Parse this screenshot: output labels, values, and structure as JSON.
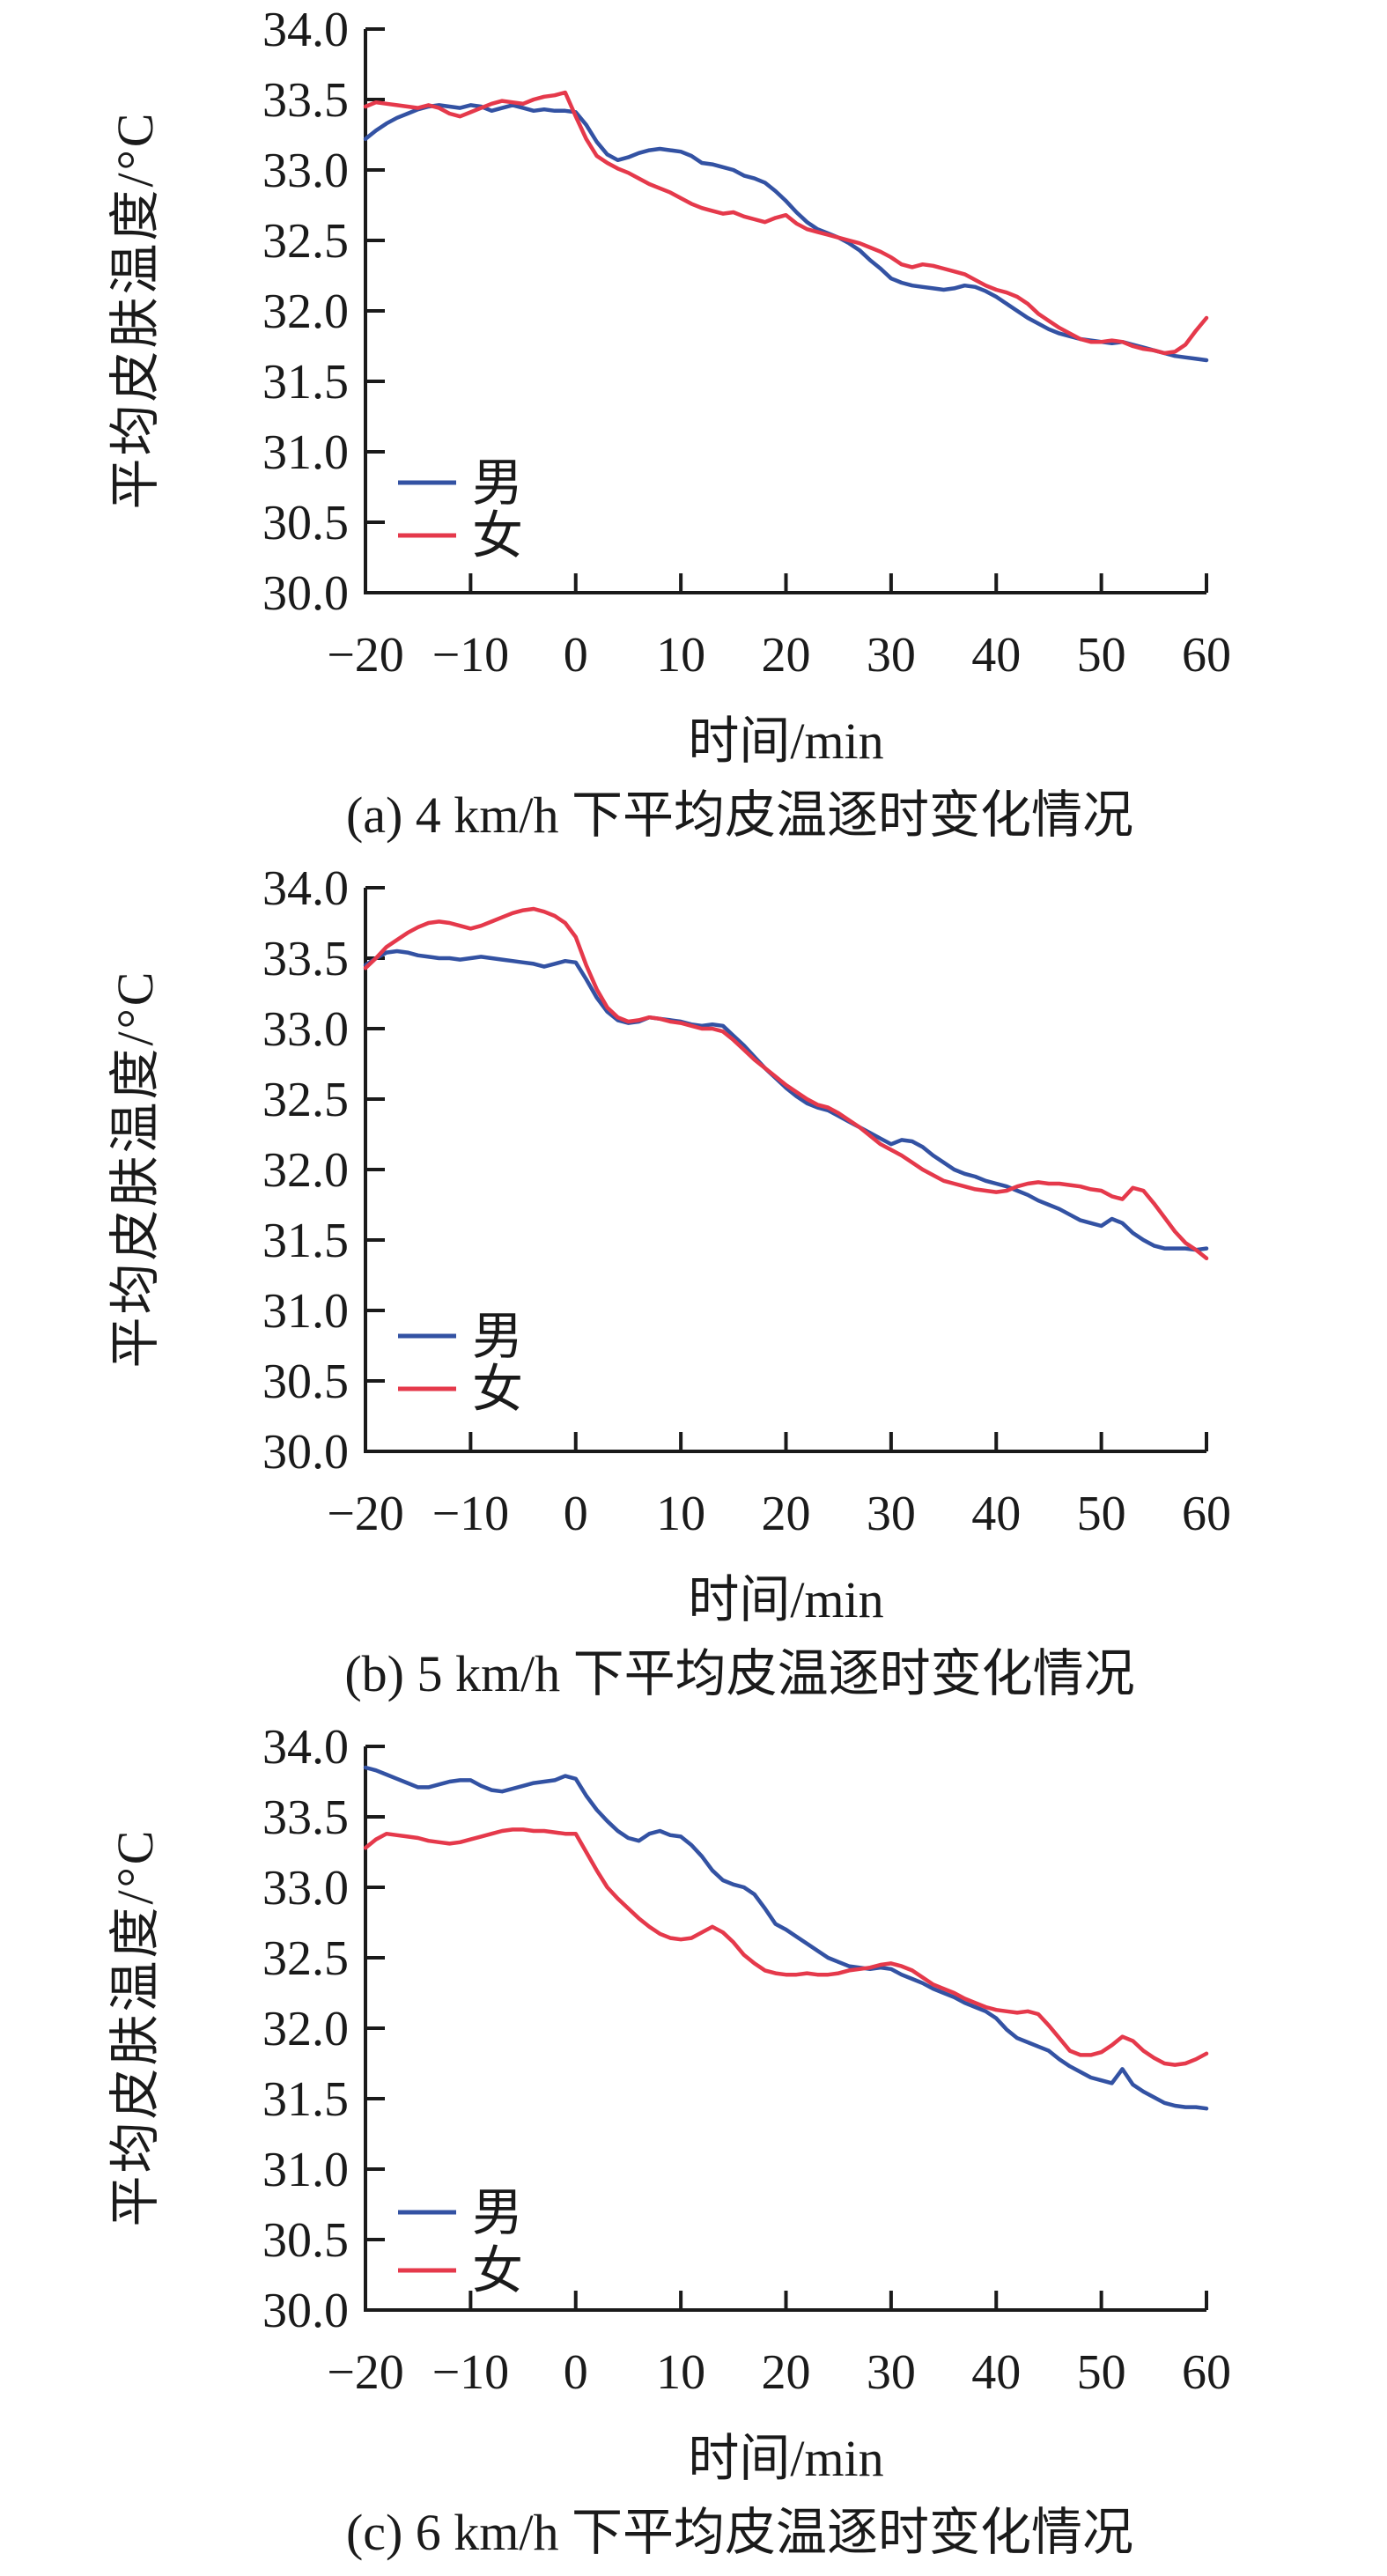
{
  "page": {
    "background": "#ffffff"
  },
  "colors": {
    "male": "#3352a3",
    "female": "#e5394b",
    "axis": "#1a1a1a",
    "text": "#1a1a1a"
  },
  "chart_data": [
    {
      "type": "line",
      "id": "a",
      "caption": "(a) 4 km/h 下平均皮温逐时变化情况",
      "xlabel": "时间/min",
      "ylabel": "平均皮肤温度/°C",
      "xlim": [
        -20,
        60
      ],
      "ylim": [
        30.0,
        34.0
      ],
      "x_ticks": [
        -20,
        -10,
        0,
        10,
        20,
        30,
        40,
        50,
        60
      ],
      "y_ticks": [
        34.0,
        33.5,
        33.0,
        32.5,
        32.0,
        31.5,
        31.0,
        30.5,
        30.0
      ],
      "grid": false,
      "legend": {
        "position": "lower-left-inside",
        "rows_y": [
          548,
          608
        ]
      },
      "series": [
        {
          "key": "male",
          "name": "男",
          "color_key": "male",
          "x_start": -20,
          "x_step": 1,
          "y": [
            33.22,
            33.28,
            33.33,
            33.37,
            33.4,
            33.43,
            33.45,
            33.46,
            33.45,
            33.44,
            33.46,
            33.45,
            33.42,
            33.44,
            33.46,
            33.44,
            33.42,
            33.43,
            33.42,
            33.42,
            33.41,
            33.32,
            33.2,
            33.11,
            33.07,
            33.09,
            33.12,
            33.14,
            33.15,
            33.14,
            33.13,
            33.1,
            33.05,
            33.04,
            33.02,
            33.0,
            32.96,
            32.94,
            32.91,
            32.85,
            32.78,
            32.7,
            32.63,
            32.58,
            32.55,
            32.52,
            32.48,
            32.43,
            32.36,
            32.3,
            32.23,
            32.2,
            32.18,
            32.17,
            32.16,
            32.15,
            32.16,
            32.18,
            32.17,
            32.14,
            32.1,
            32.05,
            32.0,
            31.95,
            31.91,
            31.87,
            31.84,
            31.82,
            31.8,
            31.79,
            31.78,
            31.77,
            31.78,
            31.76,
            31.74,
            31.72,
            31.7,
            31.68,
            31.67,
            31.66,
            31.65
          ]
        },
        {
          "key": "female",
          "name": "女",
          "color_key": "female",
          "x_start": -20,
          "x_step": 1,
          "y": [
            33.45,
            33.48,
            33.47,
            33.46,
            33.45,
            33.44,
            33.46,
            33.44,
            33.4,
            33.38,
            33.41,
            33.44,
            33.47,
            33.49,
            33.48,
            33.47,
            33.5,
            33.52,
            33.53,
            33.55,
            33.38,
            33.22,
            33.1,
            33.05,
            33.01,
            32.98,
            32.94,
            32.9,
            32.87,
            32.84,
            32.8,
            32.76,
            32.73,
            32.71,
            32.69,
            32.7,
            32.67,
            32.65,
            32.63,
            32.66,
            32.68,
            32.62,
            32.58,
            32.56,
            32.54,
            32.52,
            32.5,
            32.48,
            32.45,
            32.42,
            32.38,
            32.33,
            32.31,
            32.33,
            32.32,
            32.3,
            32.28,
            32.26,
            32.22,
            32.18,
            32.15,
            32.13,
            32.1,
            32.05,
            31.98,
            31.93,
            31.88,
            31.84,
            31.8,
            31.78,
            31.78,
            31.79,
            31.78,
            31.75,
            31.73,
            31.72,
            31.7,
            31.71,
            31.76,
            31.86,
            31.95
          ]
        }
      ]
    },
    {
      "type": "line",
      "id": "b",
      "caption": "(b) 5 km/h 下平均皮温逐时变化情况",
      "xlabel": "时间/min",
      "ylabel": "平均皮肤温度/°C",
      "xlim": [
        -20,
        60
      ],
      "ylim": [
        30.0,
        34.0
      ],
      "x_ticks": [
        -20,
        -10,
        0,
        10,
        20,
        30,
        40,
        50,
        60
      ],
      "y_ticks": [
        34.0,
        33.5,
        33.0,
        32.5,
        32.0,
        31.5,
        31.0,
        30.5,
        30.0
      ],
      "grid": false,
      "legend": {
        "position": "lower-left-inside",
        "rows_y": [
          542,
          602
        ]
      },
      "series": [
        {
          "key": "male",
          "name": "男",
          "color_key": "male",
          "x_start": -20,
          "x_step": 1,
          "y": [
            33.45,
            33.5,
            33.54,
            33.55,
            33.54,
            33.52,
            33.51,
            33.5,
            33.5,
            33.49,
            33.5,
            33.51,
            33.5,
            33.49,
            33.48,
            33.47,
            33.46,
            33.44,
            33.46,
            33.48,
            33.47,
            33.35,
            33.22,
            33.12,
            33.06,
            33.04,
            33.05,
            33.08,
            33.07,
            33.06,
            33.05,
            33.03,
            33.02,
            33.03,
            33.02,
            32.95,
            32.88,
            32.8,
            32.72,
            32.65,
            32.58,
            32.52,
            32.47,
            32.44,
            32.42,
            32.38,
            32.34,
            32.3,
            32.26,
            32.22,
            32.18,
            32.21,
            32.2,
            32.16,
            32.1,
            32.05,
            32.0,
            31.97,
            31.95,
            31.92,
            31.9,
            31.88,
            31.85,
            31.82,
            31.78,
            31.75,
            31.72,
            31.68,
            31.64,
            31.62,
            31.6,
            31.65,
            31.62,
            31.55,
            31.5,
            31.46,
            31.44,
            31.44,
            31.44,
            31.43,
            31.44
          ]
        },
        {
          "key": "female",
          "name": "女",
          "color_key": "female",
          "x_start": -20,
          "x_step": 1,
          "y": [
            33.43,
            33.5,
            33.58,
            33.63,
            33.68,
            33.72,
            33.75,
            33.76,
            33.75,
            33.73,
            33.71,
            33.73,
            33.76,
            33.79,
            33.82,
            33.84,
            33.85,
            33.83,
            33.8,
            33.75,
            33.65,
            33.45,
            33.28,
            33.15,
            33.08,
            33.05,
            33.06,
            33.08,
            33.07,
            33.05,
            33.04,
            33.02,
            33.0,
            33.0,
            32.98,
            32.92,
            32.85,
            32.78,
            32.72,
            32.66,
            32.6,
            32.55,
            32.5,
            32.46,
            32.44,
            32.4,
            32.35,
            32.3,
            32.24,
            32.18,
            32.14,
            32.1,
            32.05,
            32.0,
            31.96,
            31.92,
            31.9,
            31.88,
            31.86,
            31.85,
            31.84,
            31.85,
            31.88,
            31.9,
            31.91,
            31.9,
            31.9,
            31.89,
            31.88,
            31.86,
            31.85,
            31.81,
            31.79,
            31.87,
            31.85,
            31.76,
            31.66,
            31.56,
            31.48,
            31.43,
            31.37
          ]
        }
      ]
    },
    {
      "type": "line",
      "id": "c",
      "caption": "(c) 6 km/h 下平均皮温逐时变化情况",
      "xlabel": "时间/min",
      "ylabel": "平均皮肤温度/°C",
      "xlim": [
        -20,
        60
      ],
      "ylim": [
        30.0,
        34.0
      ],
      "x_ticks": [
        -20,
        -10,
        0,
        10,
        20,
        30,
        40,
        50,
        60
      ],
      "y_ticks": [
        34.0,
        33.5,
        33.0,
        32.5,
        32.0,
        31.5,
        31.0,
        30.5,
        30.0
      ],
      "grid": false,
      "legend": {
        "position": "lower-left-inside",
        "rows_y": [
          562,
          628
        ]
      },
      "series": [
        {
          "key": "male",
          "name": "男",
          "color_key": "male",
          "x_start": -20,
          "x_step": 1,
          "y": [
            33.85,
            33.83,
            33.8,
            33.77,
            33.74,
            33.71,
            33.71,
            33.73,
            33.75,
            33.76,
            33.76,
            33.72,
            33.69,
            33.68,
            33.7,
            33.72,
            33.74,
            33.75,
            33.76,
            33.79,
            33.77,
            33.65,
            33.55,
            33.47,
            33.4,
            33.35,
            33.33,
            33.38,
            33.4,
            33.37,
            33.36,
            33.3,
            33.22,
            33.12,
            33.05,
            33.02,
            33.0,
            32.95,
            32.85,
            32.74,
            32.7,
            32.65,
            32.6,
            32.55,
            32.5,
            32.47,
            32.44,
            32.43,
            32.42,
            32.43,
            32.42,
            32.38,
            32.35,
            32.32,
            32.28,
            32.25,
            32.22,
            32.18,
            32.15,
            32.12,
            32.07,
            31.99,
            31.93,
            31.9,
            31.87,
            31.84,
            31.78,
            31.73,
            31.69,
            31.65,
            31.63,
            31.61,
            31.71,
            31.6,
            31.55,
            31.51,
            31.47,
            31.45,
            31.44,
            31.44,
            31.43
          ]
        },
        {
          "key": "female",
          "name": "女",
          "color_key": "female",
          "x_start": -20,
          "x_step": 1,
          "y": [
            33.28,
            33.34,
            33.38,
            33.37,
            33.36,
            33.35,
            33.33,
            33.32,
            33.31,
            33.32,
            33.34,
            33.36,
            33.38,
            33.4,
            33.41,
            33.41,
            33.4,
            33.4,
            33.39,
            33.38,
            33.38,
            33.25,
            33.12,
            33.0,
            32.92,
            32.85,
            32.78,
            32.72,
            32.67,
            32.64,
            32.63,
            32.64,
            32.68,
            32.72,
            32.68,
            32.61,
            32.52,
            32.46,
            32.41,
            32.39,
            32.38,
            32.38,
            32.39,
            32.38,
            32.38,
            32.39,
            32.41,
            32.42,
            32.43,
            32.45,
            32.46,
            32.44,
            32.41,
            32.36,
            32.31,
            32.28,
            32.25,
            32.21,
            32.18,
            32.15,
            32.13,
            32.12,
            32.11,
            32.12,
            32.1,
            32.02,
            31.93,
            31.84,
            31.81,
            31.81,
            31.83,
            31.88,
            31.94,
            31.91,
            31.84,
            31.79,
            31.75,
            31.74,
            31.75,
            31.78,
            31.82
          ]
        }
      ]
    }
  ]
}
